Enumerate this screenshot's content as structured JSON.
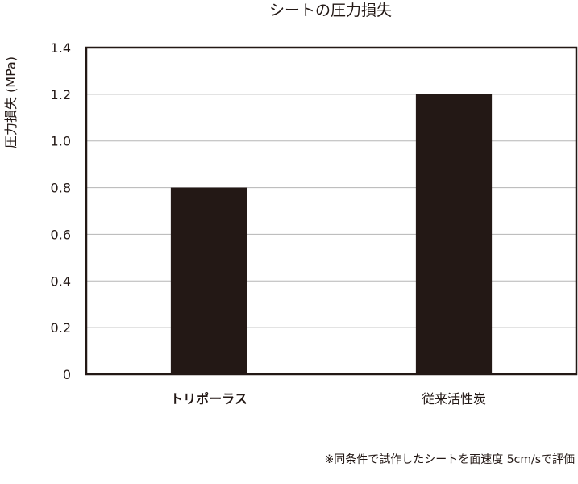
{
  "chart_data": {
    "type": "bar",
    "title": "シートの圧力損失",
    "ylabel": "圧力損失 (MPa)",
    "xlabel": "",
    "categories": [
      "トリポーラス",
      "従来活性炭"
    ],
    "values": [
      0.8,
      1.2
    ],
    "ylim": [
      0,
      1.4
    ],
    "yticks": [
      0,
      0.2,
      0.4,
      0.6,
      0.8,
      1.0,
      1.2,
      1.4
    ],
    "ytick_labels": [
      "0",
      "0.2",
      "0.4",
      "0.6",
      "0.8",
      "1.0",
      "1.2",
      "1.4"
    ],
    "grid": true,
    "bar_color": "#231815",
    "grid_color": "#b5b5b5"
  },
  "footnote": "※同条件で試作したシートを面速度 5cm/sで評価"
}
